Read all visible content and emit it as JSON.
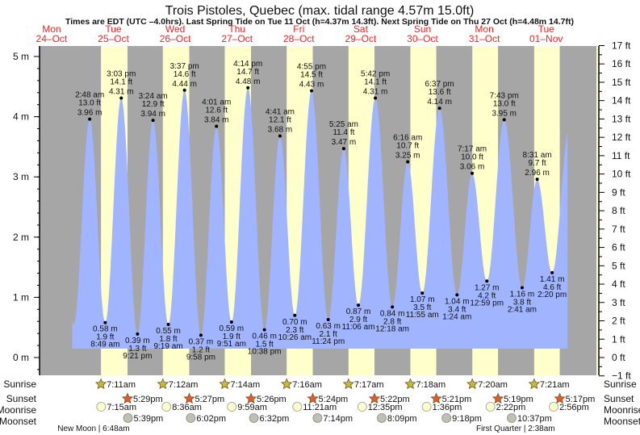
{
  "chart_data": {
    "type": "area",
    "title": "Trois Pistoles, Quebec (max. tidal range 4.57m 15.0ft)",
    "subtitle": "Times are EDT (UTC –4.0hrs). Last Spring Tide on Tue 11 Oct (h=4.37m 14.3ft). Next Spring Tide on Thu 27 Oct (h=4.48m 14.7ft)",
    "ylabel_left_unit": "m",
    "ylabel_right_unit": "ft",
    "ylim_m": [
      -0.3048,
      5.18
    ],
    "y_ticks_left": [
      "0 m",
      "1 m",
      "2 m",
      "3 m",
      "4 m",
      "5 m"
    ],
    "y_ticks_right": [
      "−1 ft",
      "0 ft",
      "1 ft",
      "2 ft",
      "3 ft",
      "4 ft",
      "5 ft",
      "6 ft",
      "7 ft",
      "8 ft",
      "9 ft",
      "10 ft",
      "11 ft",
      "12 ft",
      "13 ft",
      "14 ft",
      "15 ft",
      "16 ft",
      "17 ft"
    ],
    "x_unit": "hours since Mon 24-Oct 00:00",
    "xlim_hours": [
      7.33,
      223.1
    ],
    "days": [
      {
        "dow": "Mon",
        "date": "24–Oct"
      },
      {
        "dow": "Tue",
        "date": "25–Oct"
      },
      {
        "dow": "Wed",
        "date": "26–Oct"
      },
      {
        "dow": "Thu",
        "date": "27–Oct"
      },
      {
        "dow": "Fri",
        "date": "28–Oct"
      },
      {
        "dow": "Sat",
        "date": "29–Oct"
      },
      {
        "dow": "Sun",
        "date": "30–Oct"
      },
      {
        "dow": "Mon",
        "date": "31–Oct"
      },
      {
        "dow": "Tue",
        "date": "01–Nov"
      }
    ],
    "tide_range_hours": [
      20.0,
      212.3
    ],
    "edge_points": [
      {
        "t": 14.5,
        "m": 3.9
      },
      {
        "t": 20.6,
        "m": 0.55
      },
      {
        "t": 213.0,
        "m": 3.8
      }
    ],
    "extremes": [
      {
        "type": "H",
        "t": 26.8,
        "time": "2:48 am",
        "ft": "13.0 ft",
        "m": 3.96,
        "mlabel": "3.96 m"
      },
      {
        "type": "L",
        "t": 32.82,
        "time": "8:49 am",
        "ft": "1.9 ft",
        "m": 0.58,
        "mlabel": "0.58 m"
      },
      {
        "type": "H",
        "t": 39.05,
        "time": "3:03 pm",
        "ft": "14.1 ft",
        "m": 4.31,
        "mlabel": "4.31 m"
      },
      {
        "type": "L",
        "t": 45.35,
        "time": "9:21 pm",
        "ft": "1.3 ft",
        "m": 0.39,
        "mlabel": "0.39 m"
      },
      {
        "type": "H",
        "t": 51.4,
        "time": "3:24 am",
        "ft": "12.9 ft",
        "m": 3.94,
        "mlabel": "3.94 m"
      },
      {
        "type": "L",
        "t": 57.32,
        "time": "9:19 am",
        "ft": "1.8 ft",
        "m": 0.55,
        "mlabel": "0.55 m"
      },
      {
        "type": "H",
        "t": 63.62,
        "time": "3:37 pm",
        "ft": "14.6 ft",
        "m": 4.44,
        "mlabel": "4.44 m"
      },
      {
        "type": "L",
        "t": 69.97,
        "time": "9:58 pm",
        "ft": "1.2 ft",
        "m": 0.37,
        "mlabel": "0.37 m"
      },
      {
        "type": "H",
        "t": 76.02,
        "time": "4:01 am",
        "ft": "12.6 ft",
        "m": 3.84,
        "mlabel": "3.84 m"
      },
      {
        "type": "L",
        "t": 81.85,
        "time": "9:51 am",
        "ft": "1.9 ft",
        "m": 0.59,
        "mlabel": "0.59 m"
      },
      {
        "type": "H",
        "t": 88.23,
        "time": "4:14 pm",
        "ft": "14.7 ft",
        "m": 4.48,
        "mlabel": "4.48 m"
      },
      {
        "type": "L",
        "t": 94.63,
        "time": "10:38 pm",
        "ft": "1.5 ft",
        "m": 0.46,
        "mlabel": "0.46 m"
      },
      {
        "type": "H",
        "t": 100.68,
        "time": "4:41 am",
        "ft": "12.1 ft",
        "m": 3.68,
        "mlabel": "3.68 m"
      },
      {
        "type": "L",
        "t": 106.43,
        "time": "10:26 am",
        "ft": "2.3 ft",
        "m": 0.7,
        "mlabel": "0.70 m"
      },
      {
        "type": "H",
        "t": 112.92,
        "time": "4:55 pm",
        "ft": "14.5 ft",
        "m": 4.43,
        "mlabel": "4.43 m"
      },
      {
        "type": "L",
        "t": 119.4,
        "time": "11:24 pm",
        "ft": "2.1 ft",
        "m": 0.63,
        "mlabel": "0.63 m"
      },
      {
        "type": "H",
        "t": 125.42,
        "time": "5:25 am",
        "ft": "11.4 ft",
        "m": 3.47,
        "mlabel": "3.47 m"
      },
      {
        "type": "L",
        "t": 131.1,
        "time": "11:06 am",
        "ft": "2.9 ft",
        "m": 0.87,
        "mlabel": "0.87 m"
      },
      {
        "type": "H",
        "t": 137.7,
        "time": "5:42 pm",
        "ft": "14.1 ft",
        "m": 4.31,
        "mlabel": "4.31 m"
      },
      {
        "type": "L",
        "t": 144.3,
        "time": "12:18 am",
        "ft": "2.8 ft",
        "m": 0.84,
        "mlabel": "0.84 m"
      },
      {
        "type": "H",
        "t": 150.27,
        "time": "6:16 am",
        "ft": "10.7 ft",
        "m": 3.25,
        "mlabel": "3.25 m"
      },
      {
        "type": "L",
        "t": 155.92,
        "time": "11:55 am",
        "ft": "3.5 ft",
        "m": 1.07,
        "mlabel": "1.07 m"
      },
      {
        "type": "H",
        "t": 162.62,
        "time": "6:37 pm",
        "ft": "13.6 ft",
        "m": 4.14,
        "mlabel": "4.14 m"
      },
      {
        "type": "L",
        "t": 169.4,
        "time": "1:24 am",
        "ft": "3.4 ft",
        "m": 1.04,
        "mlabel": "1.04 m"
      },
      {
        "type": "H",
        "t": 175.28,
        "time": "7:17 am",
        "ft": "10.0 ft",
        "m": 3.06,
        "mlabel": "3.06 m"
      },
      {
        "type": "L",
        "t": 180.98,
        "time": "12:59 pm",
        "ft": "4.2 ft",
        "m": 1.27,
        "mlabel": "1.27 m"
      },
      {
        "type": "H",
        "t": 187.72,
        "time": "7:43 pm",
        "ft": "13.0 ft",
        "m": 3.95,
        "mlabel": "3.95 m"
      },
      {
        "type": "L",
        "t": 194.68,
        "time": "2:41 am",
        "ft": "3.8 ft",
        "m": 1.16,
        "mlabel": "1.16 m"
      },
      {
        "type": "H",
        "t": 200.52,
        "time": "8:31 am",
        "ft": "9.7 ft",
        "m": 2.96,
        "mlabel": "2.96 m"
      },
      {
        "type": "L",
        "t": 206.33,
        "time": "2:20 pm",
        "ft": "4.6 ft",
        "m": 1.41,
        "mlabel": "1.41 m"
      }
    ]
  },
  "rows": {
    "sunrise_label": "Sunrise",
    "sunset_label": "Sunset",
    "moonrise_label": "Moonrise",
    "moonset_label": "Moonset"
  },
  "sun": [
    {
      "day": 1,
      "rise": "7:11am",
      "set": "5:29pm"
    },
    {
      "day": 2,
      "rise": "7:12am",
      "set": "5:27pm"
    },
    {
      "day": 3,
      "rise": "7:14am",
      "set": "5:26pm"
    },
    {
      "day": 4,
      "rise": "7:16am",
      "set": "5:24pm"
    },
    {
      "day": 5,
      "rise": "7:17am",
      "set": "5:22pm"
    },
    {
      "day": 6,
      "rise": "7:18am",
      "set": "5:21pm"
    },
    {
      "day": 7,
      "rise": "7:20am",
      "set": "5:19pm"
    },
    {
      "day": 8,
      "rise": "7:21am",
      "set": "5:17pm"
    }
  ],
  "moonrise": [
    {
      "day": 1,
      "time": "7:15am"
    },
    {
      "day": 2,
      "time": "8:36am"
    },
    {
      "day": 3,
      "time": "9:59am"
    },
    {
      "day": 4,
      "time": "11:21am"
    },
    {
      "day": 5,
      "time": "12:35pm"
    },
    {
      "day": 6,
      "time": "1:36pm"
    },
    {
      "day": 7,
      "time": "2:22pm"
    },
    {
      "day": 8,
      "time": "2:56pm"
    }
  ],
  "moonset": [
    {
      "day": 1,
      "time": "5:39pm"
    },
    {
      "day": 2,
      "time": "6:02pm"
    },
    {
      "day": 3,
      "time": "6:32pm"
    },
    {
      "day": 4,
      "time": "7:14pm"
    },
    {
      "day": 5,
      "time": "8:09pm"
    },
    {
      "day": 6,
      "time": "9:18pm"
    },
    {
      "day": 7,
      "time": "10:37pm"
    }
  ],
  "moon_phases": [
    {
      "day": 1,
      "hour": 6.8,
      "label": "New Moon | 6:48am"
    },
    {
      "day": 8,
      "hour": 2.63,
      "label": "First Quarter | 2:38am"
    }
  ],
  "colors": {
    "night": "#a6a6a6",
    "day": "#ffffcc",
    "water": "#a0b4ff",
    "dayLabel": "#ff2020",
    "sunrise": "#c8b83c",
    "sunset": "#e85a2c",
    "moonrise": "#ffffcc",
    "moonset": "#c0c0b0"
  }
}
